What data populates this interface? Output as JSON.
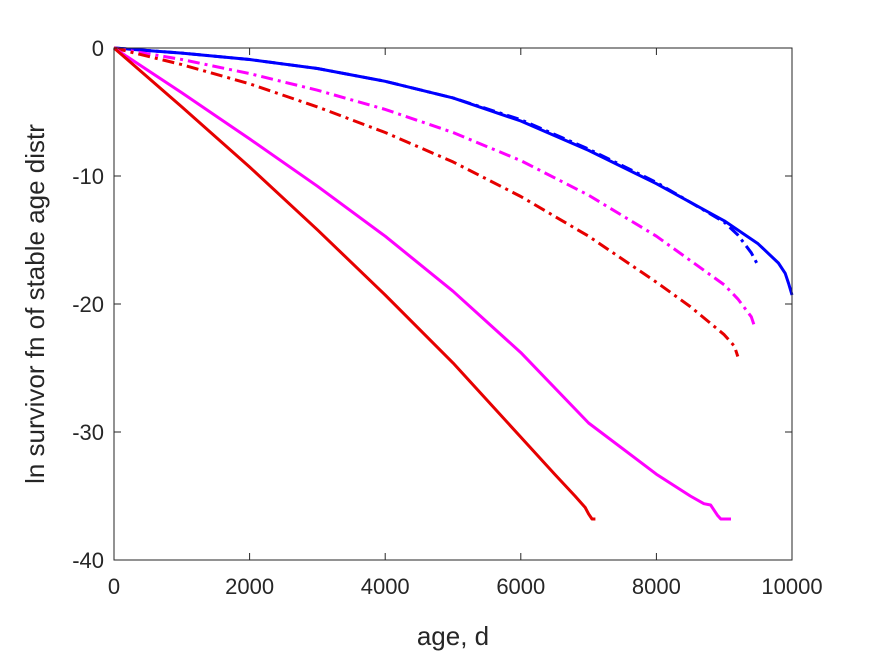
{
  "chart_data": {
    "type": "line",
    "title": "",
    "xlabel": "age, d",
    "ylabel": "ln survivor fn of stable age distr",
    "xlim": [
      0,
      10000
    ],
    "ylim": [
      -40,
      0
    ],
    "xticks": [
      0,
      2000,
      4000,
      6000,
      8000,
      10000
    ],
    "yticks": [
      0,
      -10,
      -20,
      -30,
      -40
    ],
    "grid": false,
    "legend": "none",
    "series": [
      {
        "color": "#0000ff",
        "style": "solid",
        "x": [
          0,
          1000,
          2000,
          3000,
          4000,
          5000,
          6000,
          7000,
          8000,
          9000,
          9500,
          9800,
          9900,
          9950,
          10000
        ],
        "y": [
          0,
          -0.4,
          -0.9,
          -1.6,
          -2.6,
          -3.9,
          -5.7,
          -8.0,
          -10.6,
          -13.5,
          -15.3,
          -16.8,
          -17.6,
          -18.4,
          -19.3
        ]
      },
      {
        "color": "#0000ff",
        "style": "dashdot",
        "x": [
          0,
          1000,
          2000,
          3000,
          4000,
          5000,
          6000,
          7000,
          8000,
          9000,
          9200,
          9400,
          9500
        ],
        "y": [
          0,
          -0.4,
          -0.9,
          -1.6,
          -2.6,
          -3.9,
          -5.6,
          -7.9,
          -10.5,
          -13.6,
          -14.6,
          -16.0,
          -17.0
        ]
      },
      {
        "color": "#ff00ff",
        "style": "dashdot",
        "x": [
          0,
          1000,
          2000,
          3000,
          4000,
          5000,
          6000,
          7000,
          8000,
          9000,
          9200,
          9400,
          9450
        ],
        "y": [
          0,
          -0.9,
          -2.0,
          -3.3,
          -4.8,
          -6.6,
          -8.8,
          -11.5,
          -14.7,
          -18.5,
          -19.6,
          -21.0,
          -21.8
        ]
      },
      {
        "color": "#e60000",
        "style": "dashdot",
        "x": [
          0,
          1000,
          2000,
          3000,
          4000,
          5000,
          6000,
          7000,
          8000,
          8500,
          9000,
          9150,
          9200
        ],
        "y": [
          0,
          -1.3,
          -2.8,
          -4.6,
          -6.6,
          -8.9,
          -11.6,
          -14.7,
          -18.3,
          -20.2,
          -22.4,
          -23.3,
          -24.1
        ]
      },
      {
        "color": "#ff00ff",
        "style": "solid",
        "x": [
          0,
          1000,
          2000,
          3000,
          4000,
          5000,
          6000,
          7000,
          8000,
          8500,
          8700,
          8800,
          8900,
          8950,
          9000,
          9100
        ],
        "y": [
          0,
          -3.5,
          -7.1,
          -10.8,
          -14.7,
          -19.0,
          -23.8,
          -29.3,
          -33.3,
          -35.0,
          -35.6,
          -35.7,
          -36.5,
          -36.8,
          -36.8,
          -36.8
        ]
      },
      {
        "color": "#e60000",
        "style": "solid",
        "x": [
          0,
          1000,
          2000,
          3000,
          4000,
          5000,
          6000,
          6500,
          6800,
          6950,
          7000,
          7050,
          7100
        ],
        "y": [
          0,
          -4.6,
          -9.3,
          -14.2,
          -19.3,
          -24.6,
          -30.4,
          -33.3,
          -35.0,
          -35.9,
          -36.4,
          -36.8,
          -36.8
        ]
      }
    ]
  }
}
